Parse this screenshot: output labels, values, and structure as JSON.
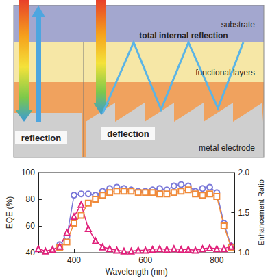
{
  "diagram": {
    "layers": [
      "substrate",
      "functional layers",
      "metal electrode"
    ],
    "annotations": [
      "total internal reflection",
      "reflection",
      "deflection"
    ]
  },
  "chart_data": {
    "type": "line",
    "x_label": "Wavelength (nm)",
    "y_label": "EQE (%)",
    "y2_label": "Enhancement Ratio",
    "x": [
      300,
      320,
      340,
      360,
      380,
      400,
      420,
      440,
      460,
      480,
      500,
      520,
      540,
      560,
      580,
      600,
      620,
      640,
      660,
      680,
      700,
      720,
      740,
      760,
      780,
      800,
      820,
      840
    ],
    "series": [
      {
        "color": "#7a78d8",
        "marker": "circle",
        "line_style": "solid",
        "values": [
          null,
          null,
          null,
          46,
          52,
          83,
          84,
          84,
          83,
          86,
          88,
          89,
          88,
          87,
          86,
          86,
          87,
          88,
          87,
          90,
          91,
          90,
          86,
          88,
          89,
          85,
          62,
          45
        ]
      },
      {
        "color": "#f08a3a",
        "marker": "square",
        "line_style": "solid",
        "values": [
          null,
          null,
          null,
          44,
          48,
          62,
          68,
          77,
          80,
          83,
          85,
          86,
          86,
          86,
          85,
          85,
          85,
          84,
          84,
          85,
          86,
          87,
          84,
          83,
          84,
          82,
          60,
          44
        ]
      },
      {
        "color": "#e0207a",
        "marker": "triangle",
        "line_style": "solid",
        "axis": "y2",
        "values": [
          1.05,
          1.02,
          1.04,
          1.08,
          1.25,
          1.45,
          1.6,
          1.3,
          1.15,
          1.07,
          1.05,
          1.03,
          1.02,
          1.02,
          1.03,
          1.03,
          1.04,
          1.05,
          1.04,
          1.05,
          1.04,
          1.04,
          1.03,
          1.05,
          1.06,
          1.05,
          1.05,
          1.08
        ]
      }
    ],
    "xlim": [
      300,
      850
    ],
    "xticks": [
      400,
      600,
      800
    ],
    "ylim": [
      40,
      100
    ],
    "yticks": [
      40,
      60,
      80,
      100
    ],
    "y2lim": [
      1,
      2
    ],
    "y2ticks": [
      {
        "value": 1,
        "label": "1.0"
      },
      {
        "value": 1.5,
        "label": "1.5"
      },
      {
        "value": 2,
        "label": "2.0"
      }
    ],
    "grid": false
  }
}
